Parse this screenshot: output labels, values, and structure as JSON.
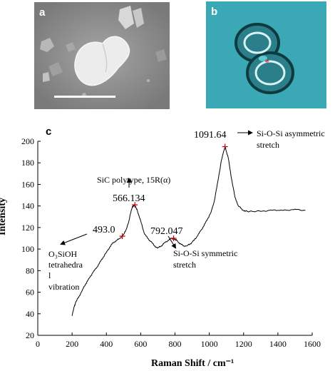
{
  "panels": {
    "a_label": "a",
    "b_label": "b",
    "c_label": "c"
  },
  "colors": {
    "line": "#000000",
    "marker": "#d00000",
    "sem_bg": "#8e8e8e",
    "optical_bg": "#3aa9b5"
  },
  "chart_data": {
    "type": "line",
    "xlabel": "Raman Shift / cm⁻¹",
    "ylabel": "Intensity",
    "xlim": [
      0,
      1600
    ],
    "ylim": [
      20,
      200
    ],
    "xticks": [
      0,
      200,
      400,
      600,
      800,
      1000,
      1200,
      1400,
      1600
    ],
    "yticks": [
      20,
      40,
      60,
      80,
      100,
      120,
      140,
      160,
      180,
      200
    ],
    "grid": false,
    "series": [
      {
        "x": [
          200,
          210,
          220,
          240,
          260,
          280,
          300,
          320,
          340,
          360,
          380,
          400,
          420,
          440,
          460,
          480,
          493,
          510,
          530,
          545,
          555,
          566,
          580,
          600,
          620,
          640,
          660,
          680,
          700,
          720,
          740,
          760,
          780,
          792,
          810,
          830,
          850,
          870,
          890,
          910,
          930,
          950,
          970,
          990,
          1010,
          1030,
          1050,
          1070,
          1091.64,
          1110,
          1130,
          1150,
          1170,
          1190,
          1210,
          1250,
          1300,
          1350,
          1400,
          1450,
          1500,
          1560
        ],
        "y": [
          38,
          45,
          50,
          56,
          62,
          68,
          73,
          78,
          82,
          87,
          92,
          97,
          102,
          106,
          108,
          110,
          112,
          116,
          125,
          136,
          140,
          141,
          136,
          126,
          115,
          110,
          107,
          103,
          101,
          103,
          106,
          108,
          110,
          110,
          108,
          105,
          103,
          103,
          105,
          108,
          112,
          117,
          122,
          128,
          134,
          145,
          163,
          182,
          195,
          185,
          165,
          148,
          140,
          137,
          135,
          135,
          135,
          136,
          136,
          136,
          137,
          136
        ]
      }
    ],
    "peaks": [
      {
        "x": 493.0,
        "y": 112,
        "label": "493.0"
      },
      {
        "x": 566.134,
        "y": 141,
        "label": "566.134"
      },
      {
        "x": 792.047,
        "y": 110,
        "label": "792.047"
      },
      {
        "x": 1091.64,
        "y": 195,
        "label": "1091.64"
      }
    ],
    "annotations": {
      "sic": "SiC polytype, 15R(α)",
      "o3_line1": "O₃SiOH",
      "o3_line2": "tetrahedra",
      "o3_line3": "l",
      "o3_line4": "vibration",
      "sym_line1": "Si-O-Si symmetric",
      "sym_line2": "stretch",
      "asym_line1": "Si-O-Si  asymmetric",
      "asym_line2": "stretch"
    }
  }
}
